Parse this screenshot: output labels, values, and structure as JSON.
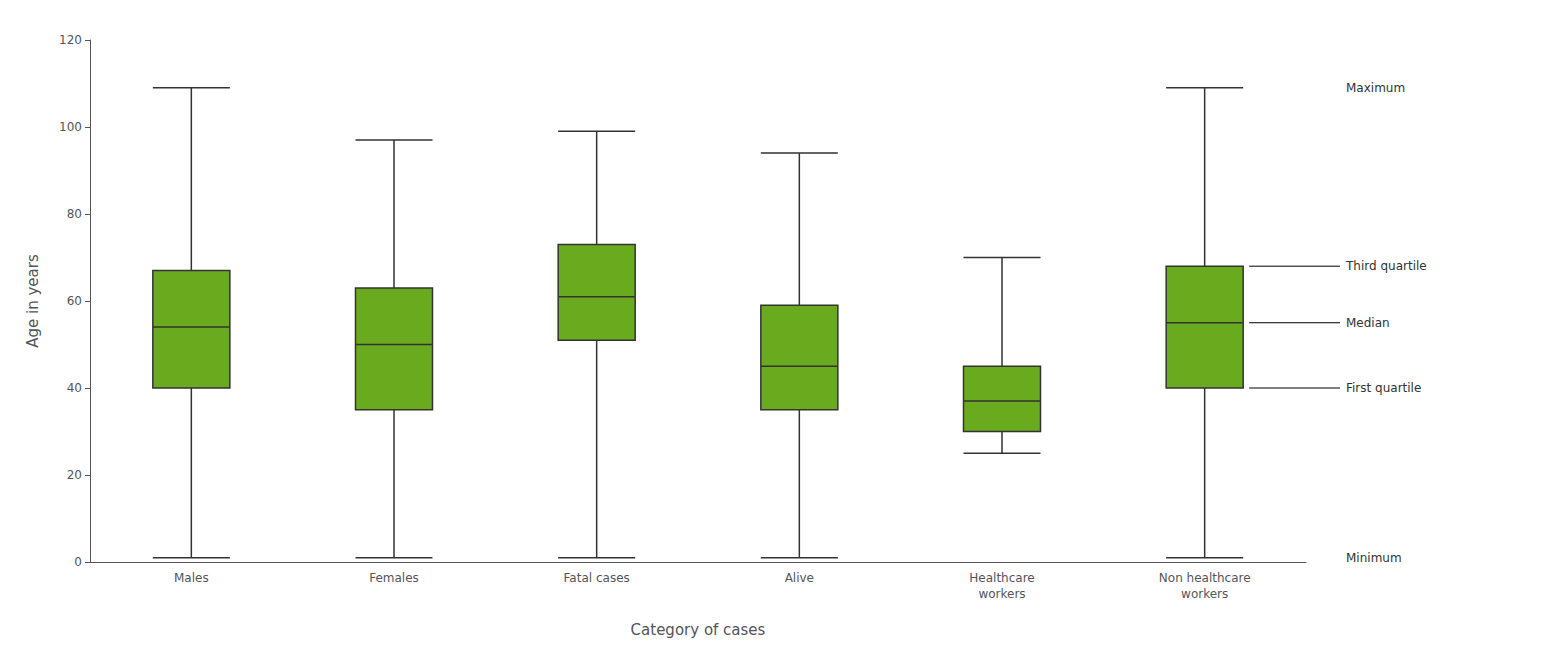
{
  "chart_data": {
    "type": "boxplot",
    "categories": [
      "Males",
      "Females",
      "Fatal cases",
      "Alive",
      "Healthcare\nworkers",
      "Non healthcare\nworkers"
    ],
    "values": [
      [
        1,
        40,
        54,
        67,
        109
      ],
      [
        1,
        35,
        50,
        63,
        97
      ],
      [
        1,
        51,
        61,
        73,
        99
      ],
      [
        1,
        35,
        45,
        59,
        94
      ],
      [
        25,
        30,
        37,
        45,
        70
      ],
      [
        1,
        40,
        55,
        68,
        109
      ]
    ],
    "color": "#6aaa1e",
    "xlabel": "Category of cases",
    "ylabel": "Age in years",
    "ylim": [
      0,
      120
    ],
    "yticks": [
      0,
      20,
      40,
      60,
      80,
      100,
      120
    ],
    "grid": false,
    "annotations": [
      {
        "label": "Maximum",
        "y": 109
      },
      {
        "label": "Third quartile",
        "y": 68
      },
      {
        "label": "Median",
        "y": 55
      },
      {
        "label": "First quartile",
        "y": 40
      },
      {
        "label": "Minimum",
        "y": 1
      }
    ]
  }
}
